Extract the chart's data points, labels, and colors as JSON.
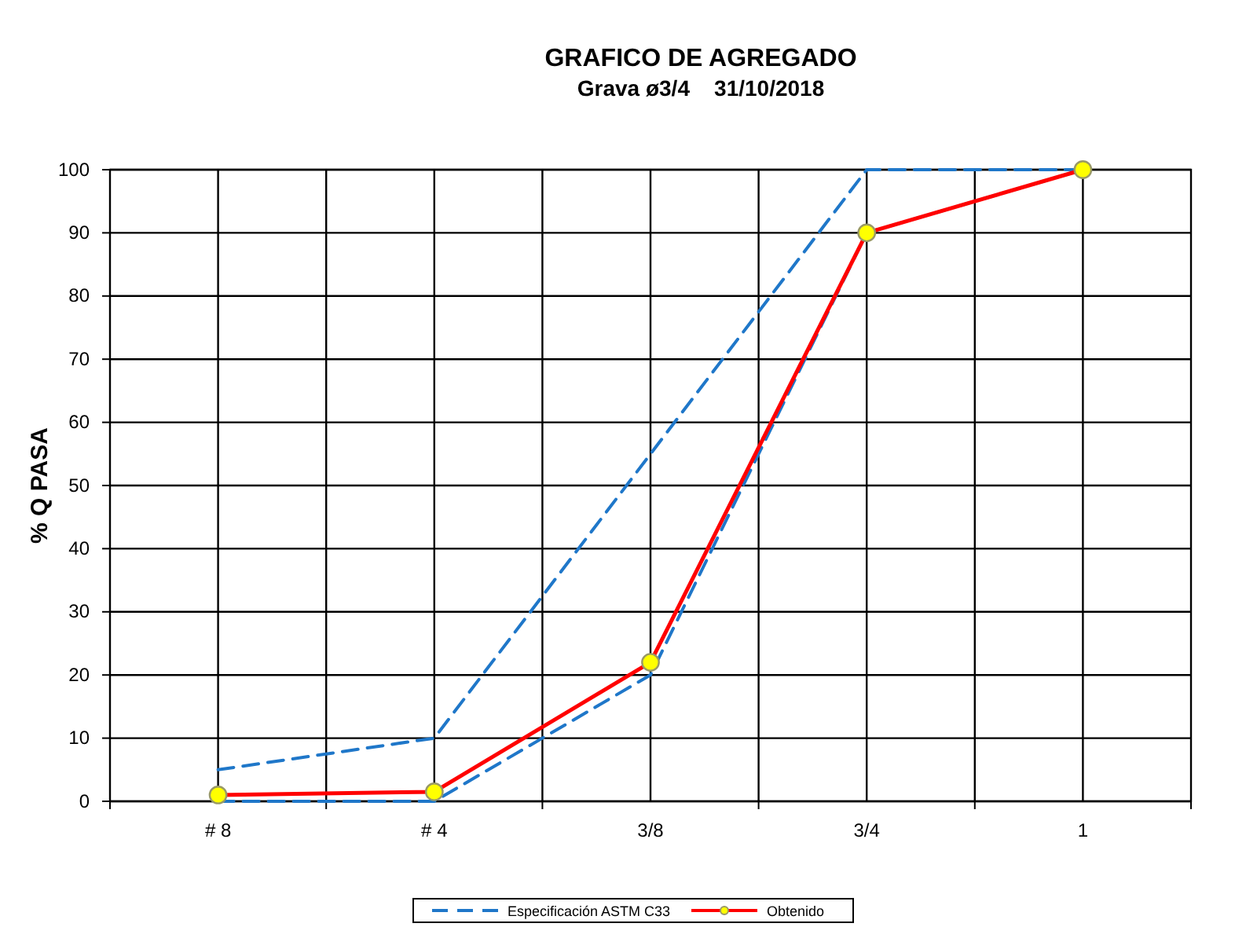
{
  "chart_data": {
    "type": "line",
    "title": "GRAFICO DE AGREGADO",
    "subtitle": "Grava ø3/4    31/10/2018",
    "ylabel": "% Q PASA",
    "categories": [
      "# 8",
      "# 4",
      "3/8",
      "3/4",
      "1"
    ],
    "series": [
      {
        "name": "Especificación ASTM C33",
        "color": "#1f77c9",
        "values": [
          0,
          0,
          20,
          90,
          100
        ],
        "line_style": "dashed",
        "marker": "none"
      },
      {
        "color": "#1f77c9",
        "values": [
          5,
          10,
          55,
          100,
          100
        ],
        "line_style": "dashed",
        "marker": "none"
      },
      {
        "name": "Obtenido",
        "color": "#ff0000",
        "values": [
          1,
          1.5,
          22,
          90,
          100
        ],
        "line_style": "solid",
        "marker": "circle"
      }
    ],
    "ylim": [
      0,
      100
    ],
    "yticks": [
      0,
      10,
      20,
      30,
      40,
      50,
      60,
      70,
      80,
      90,
      100
    ],
    "grid": true,
    "legend": "bottom"
  }
}
